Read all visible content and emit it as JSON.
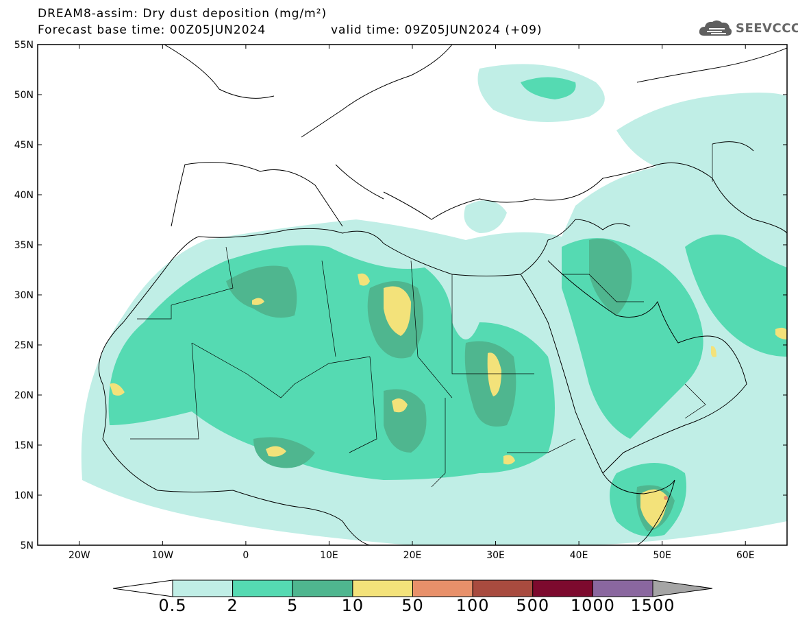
{
  "header": {
    "title_line1": "DREAM8-assim: Dry dust deposition (mg/m²)",
    "title_line2": "Forecast base time: 00Z05JUN2024",
    "valid_time": "valid time: 09Z05JUN2024 (+09)"
  },
  "logo": {
    "text": "SEEVCCC",
    "icon": "cloud-icon"
  },
  "map": {
    "lon_range": [
      -25,
      65
    ],
    "lat_range": [
      5,
      55
    ],
    "lat_ticks": [
      {
        "lat": 55,
        "label": "55N"
      },
      {
        "lat": 50,
        "label": "50N"
      },
      {
        "lat": 45,
        "label": "45N"
      },
      {
        "lat": 40,
        "label": "40N"
      },
      {
        "lat": 35,
        "label": "35N"
      },
      {
        "lat": 30,
        "label": "30N"
      },
      {
        "lat": 25,
        "label": "25N"
      },
      {
        "lat": 20,
        "label": "20N"
      },
      {
        "lat": 15,
        "label": "15N"
      },
      {
        "lat": 10,
        "label": "10N"
      },
      {
        "lat": 5,
        "label": "5N"
      }
    ],
    "lon_ticks": [
      {
        "lon": -20,
        "label": "20W"
      },
      {
        "lon": -10,
        "label": "10W"
      },
      {
        "lon": 0,
        "label": "0"
      },
      {
        "lon": 10,
        "label": "10E"
      },
      {
        "lon": 20,
        "label": "20E"
      },
      {
        "lon": 30,
        "label": "30E"
      },
      {
        "lon": 40,
        "label": "40E"
      },
      {
        "lon": 50,
        "label": "50E"
      },
      {
        "lon": 60,
        "label": "60E"
      }
    ]
  },
  "colorbar": {
    "labels": [
      "0.5",
      "2",
      "5",
      "10",
      "50",
      "100",
      "500",
      "1000",
      "1500"
    ],
    "colors": [
      "#c0eee6",
      "#55dab2",
      "#4fb68f",
      "#f3e27a",
      "#e8906a",
      "#a84b3f",
      "#7d0a2e",
      "#8a679f",
      "#a5a5a5"
    ]
  },
  "palette": {
    "ocean": "#ffffff",
    "border": "#000000"
  }
}
